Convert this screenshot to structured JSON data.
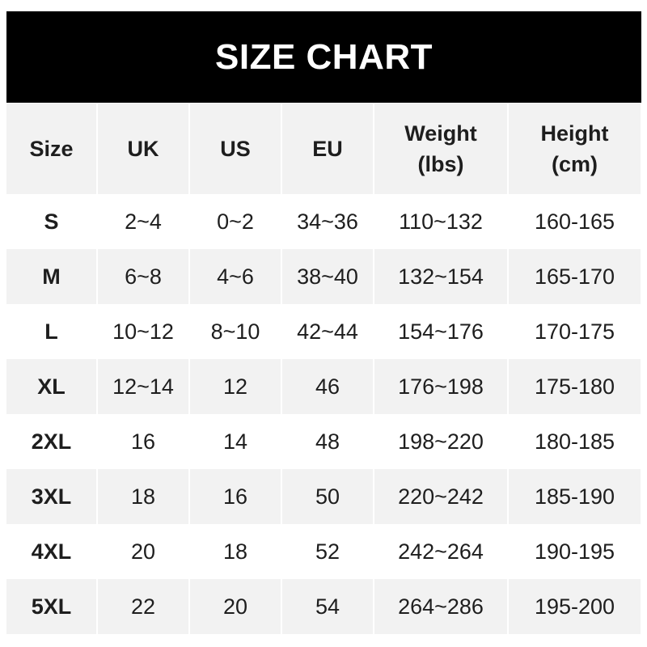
{
  "title": "SIZE CHART",
  "headers": [
    "Size",
    "UK",
    "US",
    "EU",
    "Weight\n(lbs)",
    "Height\n(cm)"
  ],
  "rows": [
    [
      "S",
      "2~4",
      "0~2",
      "34~36",
      "110~132",
      "160-165"
    ],
    [
      "M",
      "6~8",
      "4~6",
      "38~40",
      "132~154",
      "165-170"
    ],
    [
      "L",
      "10~12",
      "8~10",
      "42~44",
      "154~176",
      "170-175"
    ],
    [
      "XL",
      "12~14",
      "12",
      "46",
      "176~198",
      "175-180"
    ],
    [
      "2XL",
      "16",
      "14",
      "48",
      "198~220",
      "180-185"
    ],
    [
      "3XL",
      "18",
      "16",
      "50",
      "220~242",
      "185-190"
    ],
    [
      "4XL",
      "20",
      "18",
      "52",
      "242~264",
      "190-195"
    ],
    [
      "5XL",
      "22",
      "20",
      "54",
      "264~286",
      "195-200"
    ]
  ],
  "colors": {
    "title_bg": "#000000",
    "title_text": "#ffffff",
    "stripe": "#f2f2f2",
    "text": "#1e1e1e"
  }
}
